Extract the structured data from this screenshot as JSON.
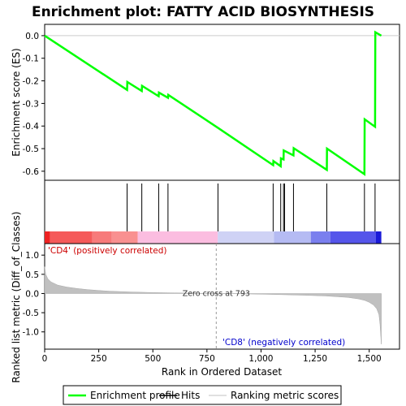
{
  "chart_data": {
    "type": "line",
    "title": "Enrichment plot: FATTY ACID BIOSYNTHESIS",
    "top_panel": {
      "ylabel": "Enrichment score (ES)",
      "ylim": [
        -0.64,
        0.05
      ],
      "yticks": [
        0.0,
        -0.1,
        -0.2,
        -0.3,
        -0.4,
        -0.5,
        -0.6
      ],
      "ytick_labels": [
        "0.0",
        "-0.1",
        "-0.2",
        "-0.3",
        "-0.4",
        "-0.5",
        "-0.6"
      ],
      "series": [
        {
          "name": "Enrichment profile",
          "color": "#00ff00",
          "x": [
            0,
            381,
            382,
            449,
            450,
            527,
            528,
            570,
            571,
            801,
            1056,
            1057,
            1091,
            1092,
            1104,
            1105,
            1150,
            1151,
            1304,
            1305,
            1478,
            1479,
            1527,
            1528,
            1556
          ],
          "y": [
            0.0,
            -0.24,
            -0.205,
            -0.245,
            -0.222,
            -0.268,
            -0.252,
            -0.275,
            -0.262,
            -0.408,
            -0.573,
            -0.555,
            -0.578,
            -0.543,
            -0.548,
            -0.508,
            -0.53,
            -0.498,
            -0.594,
            -0.5,
            -0.613,
            -0.37,
            -0.403,
            0.015,
            0.0
          ]
        }
      ]
    },
    "hits_panel": {
      "hit_positions": [
        381,
        449,
        527,
        570,
        801,
        1056,
        1091,
        1104,
        1109,
        1150,
        1304,
        1478,
        1527
      ]
    },
    "bottom_panel": {
      "ylabel": "Ranked list metric (Diff_of_Classes)",
      "xlabel": "Rank in Ordered Dataset",
      "ylim": [
        -1.45,
        1.3
      ],
      "yticks": [
        1.0,
        0.5,
        0.0,
        -0.5,
        -1.0
      ],
      "ytick_labels": [
        "1.0",
        "0.5",
        "0.0",
        "-0.5",
        "-1.0"
      ],
      "xlim": [
        0,
        1640
      ],
      "xticks": [
        0,
        250,
        500,
        750,
        1000,
        1250,
        1500
      ],
      "xtick_labels": [
        "0",
        "250",
        "500",
        "750",
        "1,000",
        "1,250",
        "1,500"
      ],
      "metric_curve": {
        "x": [
          0,
          5,
          15,
          30,
          60,
          100,
          150,
          200,
          250,
          300,
          400,
          500,
          600,
          700,
          793,
          900,
          1000,
          1100,
          1200,
          1300,
          1400,
          1450,
          1480,
          1500,
          1520,
          1535,
          1545,
          1550,
          1556
        ],
        "y": [
          0.7,
          0.5,
          0.38,
          0.3,
          0.22,
          0.17,
          0.13,
          0.1,
          0.08,
          0.06,
          0.04,
          0.025,
          0.015,
          0.007,
          0.0,
          -0.008,
          -0.018,
          -0.03,
          -0.045,
          -0.065,
          -0.1,
          -0.14,
          -0.18,
          -0.23,
          -0.3,
          -0.4,
          -0.55,
          -0.8,
          -1.32
        ]
      },
      "zero_cross": 793,
      "zero_cross_label": "Zero cross at 793",
      "positive_label": "'CD4' (positively correlated)",
      "negative_label": "'CD8' (negatively correlated)",
      "total_genes": 1556
    },
    "color_bar": [
      {
        "from": 0,
        "to": 25,
        "color": "#ee2222"
      },
      {
        "from": 25,
        "to": 220,
        "color": "#f55a5a"
      },
      {
        "from": 220,
        "to": 310,
        "color": "#f77a7a"
      },
      {
        "from": 310,
        "to": 430,
        "color": "#f99090"
      },
      {
        "from": 430,
        "to": 800,
        "color": "#fbbde0"
      },
      {
        "from": 800,
        "to": 1060,
        "color": "#cfd2f5"
      },
      {
        "from": 1060,
        "to": 1230,
        "color": "#b5bbf3"
      },
      {
        "from": 1230,
        "to": 1320,
        "color": "#7a7fee"
      },
      {
        "from": 1320,
        "to": 1530,
        "color": "#5555ea"
      },
      {
        "from": 1530,
        "to": 1556,
        "color": "#1a1ad8"
      }
    ],
    "legend": [
      {
        "label": "Enrichment profile",
        "color": "#00ff00"
      },
      {
        "label": "Hits",
        "color": "#000000"
      },
      {
        "label": "Ranking metric scores",
        "color": "#c0c0c0"
      }
    ]
  }
}
